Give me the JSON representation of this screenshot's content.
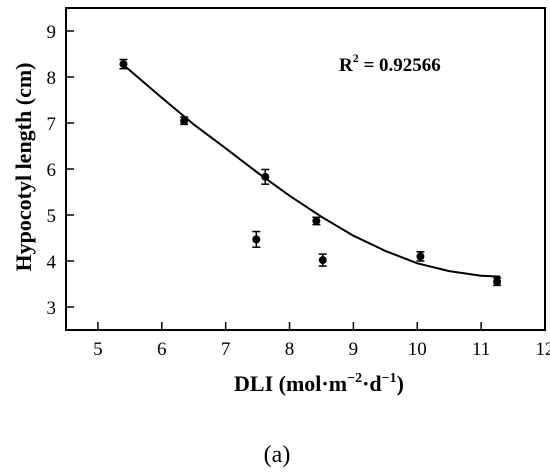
{
  "chart_data": {
    "type": "scatter",
    "title": "",
    "xlabel": "DLI (mol·m⁻²·d⁻¹)",
    "xlabel_parts": {
      "base": "DLI (mol·m",
      "exp1": "−2",
      "mid": "·d",
      "exp2": "−1",
      "end": ")"
    },
    "ylabel": "Hypocotyl length (cm)",
    "xlim": [
      4.5,
      12
    ],
    "ylim": [
      2.5,
      9.5
    ],
    "xticks": [
      5,
      6,
      7,
      8,
      9,
      10,
      11,
      12
    ],
    "yticks": [
      3,
      4,
      5,
      6,
      7,
      8,
      9
    ],
    "grid": false,
    "points": [
      {
        "x": 5.4,
        "y": 8.28,
        "err": 0.1
      },
      {
        "x": 6.35,
        "y": 7.05,
        "err": 0.08
      },
      {
        "x": 7.48,
        "y": 4.47,
        "err": 0.17
      },
      {
        "x": 7.62,
        "y": 5.83,
        "err": 0.16
      },
      {
        "x": 8.42,
        "y": 4.87,
        "err": 0.08
      },
      {
        "x": 8.52,
        "y": 4.02,
        "err": 0.13
      },
      {
        "x": 10.05,
        "y": 4.1,
        "err": 0.1
      },
      {
        "x": 11.25,
        "y": 3.55,
        "err": 0.08
      }
    ],
    "fit": {
      "type": "quadratic",
      "x": [
        5.4,
        6.0,
        6.5,
        7.0,
        7.5,
        8.0,
        8.5,
        9.0,
        9.5,
        10.0,
        10.5,
        11.0,
        11.3
      ],
      "y": [
        8.26,
        7.55,
        6.97,
        6.45,
        5.92,
        5.42,
        4.96,
        4.55,
        4.22,
        3.95,
        3.78,
        3.68,
        3.66
      ]
    },
    "annotation": {
      "label": "R",
      "sup": "2",
      "value": " = 0.92566"
    }
  },
  "panel_label": "(a)"
}
